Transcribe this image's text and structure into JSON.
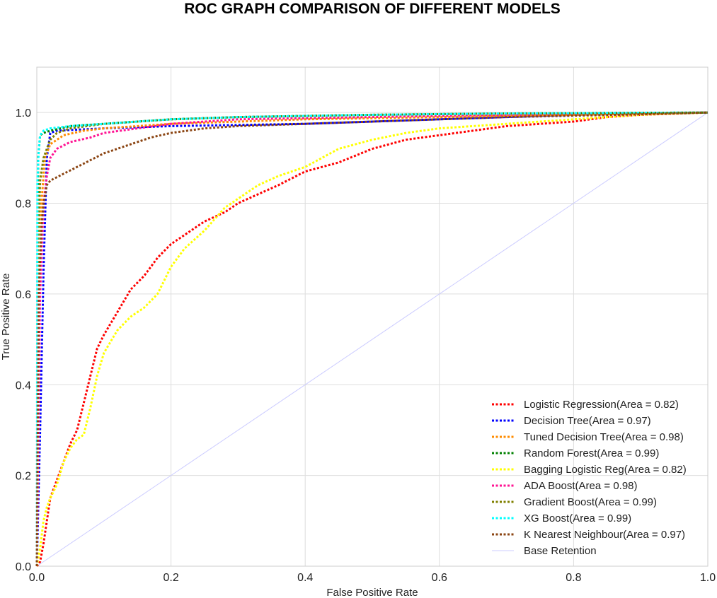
{
  "chart_data": {
    "type": "line",
    "title": "ROC GRAPH COMPARISON OF DIFFERENT MODELS",
    "xlabel": "False Positive Rate",
    "ylabel": "True Positive Rate",
    "xlim": [
      0.0,
      1.0
    ],
    "ylim": [
      0.0,
      1.1
    ],
    "xticks": [
      "0.0",
      "0.2",
      "0.4",
      "0.6",
      "0.8",
      "1.0"
    ],
    "yticks": [
      "0.0",
      "0.2",
      "0.4",
      "0.6",
      "0.8",
      "1.0"
    ],
    "grid": true,
    "legend_position": "lower-right",
    "series": [
      {
        "name": "Logistic Regression(Area = 0.82)",
        "color": "#ff0000",
        "style": "dotted",
        "x": [
          0,
          0.005,
          0.01,
          0.015,
          0.02,
          0.03,
          0.04,
          0.05,
          0.06,
          0.07,
          0.08,
          0.09,
          0.1,
          0.12,
          0.14,
          0.16,
          0.18,
          0.2,
          0.22,
          0.25,
          0.28,
          0.3,
          0.33,
          0.36,
          0.4,
          0.45,
          0.5,
          0.55,
          0.6,
          0.65,
          0.7,
          0.75,
          0.8,
          0.85,
          0.9,
          1.0
        ],
        "y": [
          0,
          0.01,
          0.05,
          0.1,
          0.15,
          0.19,
          0.23,
          0.27,
          0.3,
          0.36,
          0.42,
          0.48,
          0.51,
          0.56,
          0.61,
          0.64,
          0.68,
          0.71,
          0.73,
          0.76,
          0.78,
          0.8,
          0.82,
          0.84,
          0.87,
          0.89,
          0.92,
          0.94,
          0.95,
          0.96,
          0.97,
          0.975,
          0.98,
          0.99,
          0.995,
          1.0
        ]
      },
      {
        "name": "Decision Tree(Area = 0.97)",
        "color": "#0000ff",
        "style": "dotted",
        "x": [
          0,
          0.005,
          0.01,
          0.015,
          0.02,
          0.03,
          0.1,
          0.2,
          0.4,
          0.6,
          0.8,
          1.0
        ],
        "y": [
          0,
          0.3,
          0.65,
          0.9,
          0.955,
          0.96,
          0.965,
          0.97,
          0.975,
          0.985,
          0.995,
          1.0
        ]
      },
      {
        "name": "Tuned Decision Tree(Area = 0.98)",
        "color": "#ff8c00",
        "style": "dotted",
        "x": [
          0,
          0.003,
          0.007,
          0.012,
          0.02,
          0.04,
          0.07,
          0.1,
          0.15,
          0.2,
          0.3,
          0.4,
          0.6,
          0.8,
          1.0
        ],
        "y": [
          0,
          0.5,
          0.8,
          0.9,
          0.93,
          0.95,
          0.96,
          0.965,
          0.97,
          0.975,
          0.98,
          0.985,
          0.99,
          0.995,
          1.0
        ]
      },
      {
        "name": "Random Forest(Area = 0.99)",
        "color": "#008000",
        "style": "dotted",
        "x": [
          0,
          0.002,
          0.005,
          0.01,
          0.02,
          0.05,
          0.1,
          0.15,
          0.2,
          0.3,
          0.5,
          0.7,
          1.0
        ],
        "y": [
          0,
          0.9,
          0.95,
          0.955,
          0.96,
          0.97,
          0.975,
          0.98,
          0.985,
          0.99,
          0.995,
          0.998,
          1.0
        ]
      },
      {
        "name": "Bagging Logistic Reg(Area = 0.82)",
        "color": "#ffff00",
        "style": "dotted",
        "x": [
          0,
          0.005,
          0.01,
          0.015,
          0.02,
          0.03,
          0.04,
          0.05,
          0.06,
          0.07,
          0.08,
          0.09,
          0.1,
          0.12,
          0.14,
          0.16,
          0.18,
          0.2,
          0.22,
          0.25,
          0.28,
          0.3,
          0.33,
          0.36,
          0.4,
          0.45,
          0.5,
          0.55,
          0.6,
          0.65,
          0.7,
          0.75,
          0.8,
          0.85,
          0.9,
          1.0
        ],
        "y": [
          0,
          0.04,
          0.1,
          0.13,
          0.15,
          0.18,
          0.23,
          0.26,
          0.28,
          0.29,
          0.35,
          0.42,
          0.47,
          0.52,
          0.55,
          0.57,
          0.6,
          0.66,
          0.7,
          0.74,
          0.79,
          0.81,
          0.84,
          0.86,
          0.88,
          0.92,
          0.94,
          0.955,
          0.965,
          0.97,
          0.975,
          0.98,
          0.985,
          0.99,
          0.995,
          1.0
        ]
      },
      {
        "name": "ADA Boost(Area = 0.98)",
        "color": "#ff1493",
        "style": "dotted",
        "x": [
          0,
          0.005,
          0.01,
          0.015,
          0.02,
          0.03,
          0.05,
          0.08,
          0.1,
          0.15,
          0.2,
          0.3,
          0.5,
          0.7,
          1.0
        ],
        "y": [
          0,
          0.6,
          0.8,
          0.86,
          0.9,
          0.92,
          0.935,
          0.945,
          0.955,
          0.965,
          0.975,
          0.985,
          0.99,
          0.995,
          1.0
        ]
      },
      {
        "name": "Gradient Boost(Area = 0.99)",
        "color": "#808000",
        "style": "dotted",
        "x": [
          0,
          0.002,
          0.005,
          0.01,
          0.015,
          0.02,
          0.03,
          0.05,
          0.1,
          0.15,
          0.2,
          0.3,
          0.5,
          0.7,
          1.0
        ],
        "y": [
          0,
          0.7,
          0.85,
          0.9,
          0.92,
          0.94,
          0.955,
          0.965,
          0.975,
          0.98,
          0.985,
          0.99,
          0.995,
          0.998,
          1.0
        ]
      },
      {
        "name": "XG Boost(Area = 0.99)",
        "color": "#00ffff",
        "style": "dotted",
        "x": [
          0,
          0.001,
          0.003,
          0.005,
          0.01,
          0.02,
          0.05,
          0.1,
          0.2,
          0.3,
          0.5,
          0.7,
          1.0
        ],
        "y": [
          0,
          0.85,
          0.92,
          0.95,
          0.96,
          0.965,
          0.97,
          0.975,
          0.985,
          0.99,
          0.995,
          0.998,
          1.0
        ]
      },
      {
        "name": "K Nearest Neighbour(Area = 0.97)",
        "color": "#8b4513",
        "style": "dotted",
        "x": [
          0,
          0.003,
          0.007,
          0.01,
          0.015,
          0.02,
          0.04,
          0.06,
          0.08,
          0.1,
          0.12,
          0.14,
          0.17,
          0.2,
          0.25,
          0.3,
          0.4,
          0.5,
          0.6,
          0.7,
          0.8,
          0.9,
          1.0
        ],
        "y": [
          0,
          0.6,
          0.75,
          0.8,
          0.84,
          0.85,
          0.865,
          0.88,
          0.895,
          0.91,
          0.92,
          0.93,
          0.945,
          0.955,
          0.965,
          0.97,
          0.975,
          0.98,
          0.985,
          0.99,
          0.993,
          0.996,
          1.0
        ]
      },
      {
        "name": "Base Retention",
        "color": "#ccccff",
        "style": "solid",
        "x": [
          0,
          1.0
        ],
        "y": [
          0,
          1.0
        ]
      }
    ]
  }
}
